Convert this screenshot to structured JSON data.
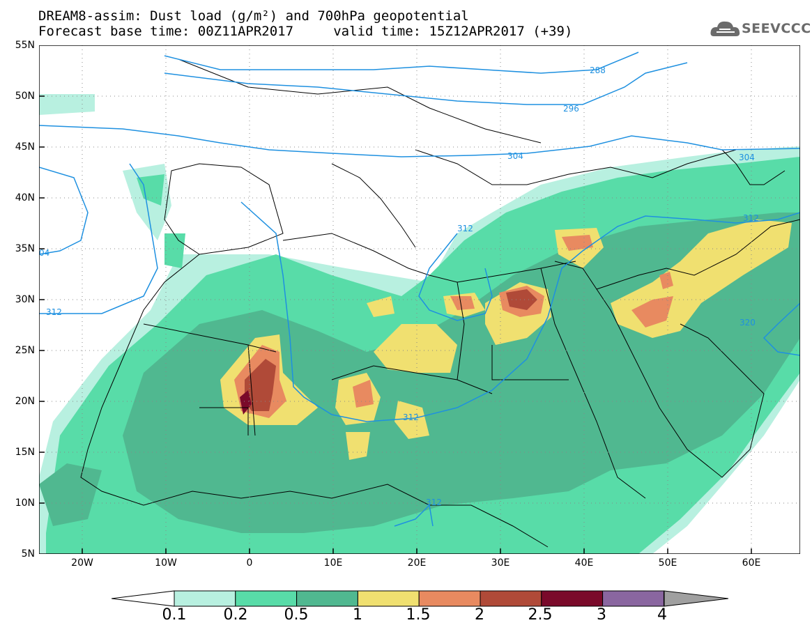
{
  "header": {
    "title_line1": "DREAM8-assim: Dust load (g/m²) and 700hPa geopotential",
    "title_line2": "Forecast base time: 00Z11APR2017     valid time: 15Z12APR2017 (+39)",
    "logo_text": "SEEVCCC"
  },
  "axes": {
    "lat_labels": [
      "55N",
      "50N",
      "45N",
      "40N",
      "35N",
      "30N",
      "25N",
      "20N",
      "15N",
      "10N",
      "5N"
    ],
    "lon_labels": [
      "20W",
      "10W",
      "0",
      "10E",
      "20E",
      "30E",
      "40E",
      "50E",
      "60E"
    ]
  },
  "contours": {
    "labels": [
      "288",
      "296",
      "304",
      "304",
      "312",
      "312",
      "312",
      "312",
      "312",
      "320",
      "04"
    ]
  },
  "colorbar": {
    "labels": [
      "0.1",
      "0.2",
      "0.5",
      "1",
      "1.5",
      "2",
      "2.5",
      "3",
      "4"
    ],
    "colors": [
      "#b8f0e0",
      "#58dca8",
      "#50b890",
      "#f0e070",
      "#e88a60",
      "#b04a38",
      "#7a0a2a",
      "#8a66a0"
    ],
    "over_color": "#a0a0a0",
    "under_color": "#ffffff"
  },
  "palette": {
    "contour": "#1e90e0",
    "border": "#000000",
    "grid": "#888888"
  }
}
